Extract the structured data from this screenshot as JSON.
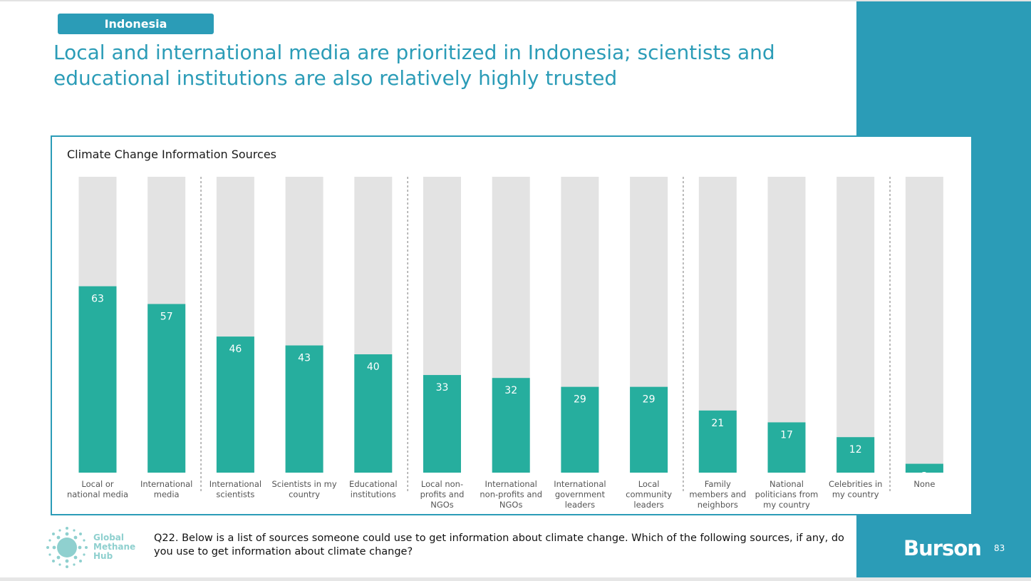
{
  "country": "Indonesia",
  "headline": "Local and international media are prioritized in Indonesia; scientists and educational institutions are also relatively highly trusted",
  "chart_data": {
    "type": "bar",
    "title": "Climate Change Information Sources",
    "categories": [
      [
        "Local or",
        "national media"
      ],
      [
        "International",
        "media"
      ],
      [
        "International",
        "scientists"
      ],
      [
        "Scientists in my",
        "country"
      ],
      [
        "Educational",
        "institutions"
      ],
      [
        "Local non-",
        "profits and",
        "NGOs"
      ],
      [
        "International",
        "non-profits and",
        "NGOs"
      ],
      [
        "International",
        "government",
        "leaders"
      ],
      [
        "Local",
        "community",
        "leaders"
      ],
      [
        "Family",
        "members and",
        "neighbors"
      ],
      [
        "National",
        "politicians from",
        "my country"
      ],
      [
        "Celebrities in",
        "my country"
      ],
      [
        "None"
      ]
    ],
    "values": [
      63,
      57,
      46,
      43,
      40,
      33,
      32,
      29,
      29,
      21,
      17,
      12,
      3
    ],
    "ylim": [
      0,
      100
    ],
    "group_dividers_after": [
      1,
      4,
      8,
      11
    ],
    "colors": {
      "bar": "#26ae9e",
      "background_bar": "#e3e3e3",
      "divider": "#777777"
    }
  },
  "question": "Q22. Below is a list of sources someone could use to get information about climate change. Which of the following sources, if any, do you use to get information about climate change?",
  "logo_text": [
    "Global",
    "Methane",
    "Hub"
  ],
  "brand": "Burson",
  "page_number": "83"
}
